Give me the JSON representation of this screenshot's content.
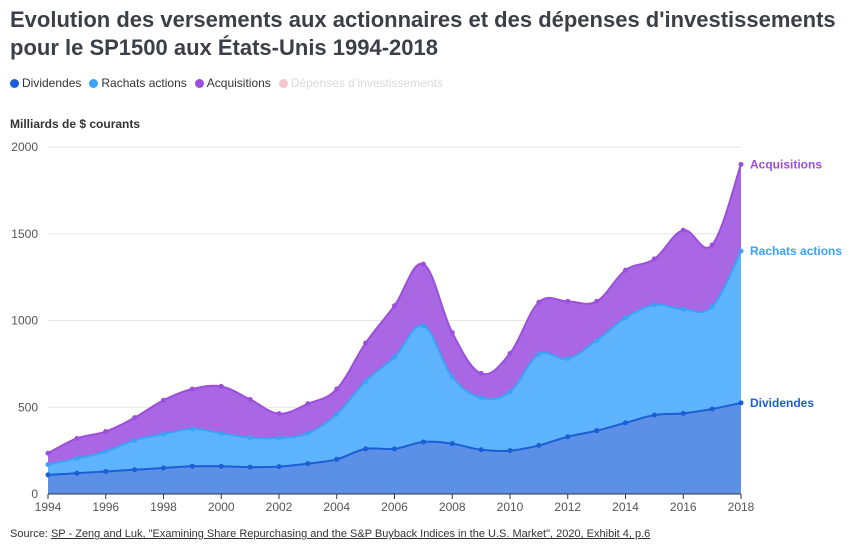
{
  "title": "Evolution des versements aux actionnaires et des dépenses d'investissements pour le SP1500 aux États-Unis 1994-2018",
  "legend": [
    {
      "label": "Dividendes",
      "color": "#1b5fd4",
      "muted": false
    },
    {
      "label": "Rachats actions",
      "color": "#3ba2f5",
      "muted": false
    },
    {
      "label": "Acquisitions",
      "color": "#9b4fdc",
      "muted": false
    },
    {
      "label": "Dépenses d’investissements",
      "color": "#f4c6d2",
      "muted": true
    }
  ],
  "unit_label": "Milliards de $ courants",
  "source": {
    "prefix": "Source: ",
    "link_text": "SP - Zeng and Luk, \"Examining Share Repurchasing and the S&P Buyback Indices in the U.S. Market\", 2020, Exhibit 4, p.6"
  },
  "chart_data": {
    "type": "area",
    "stacked": true,
    "x": [
      1994,
      1995,
      1996,
      1997,
      1998,
      1999,
      2000,
      2001,
      2002,
      2003,
      2004,
      2005,
      2006,
      2007,
      2008,
      2009,
      2010,
      2011,
      2012,
      2013,
      2014,
      2015,
      2016,
      2017,
      2018
    ],
    "xticks": [
      "1994",
      "1996",
      "1998",
      "2000",
      "2002",
      "2004",
      "2006",
      "2008",
      "2010",
      "2012",
      "2014",
      "2016",
      "2018"
    ],
    "yticks": [
      "0",
      "500",
      "1000",
      "1500",
      "2000"
    ],
    "ylim": [
      0,
      2000
    ],
    "grid": true,
    "series": [
      {
        "name": "Dividendes",
        "color": "#1b5fd4",
        "fill": "#5c8fe6",
        "values": [
          110,
          120,
          130,
          140,
          150,
          160,
          160,
          155,
          158,
          175,
          200,
          260,
          260,
          300,
          290,
          255,
          250,
          280,
          330,
          365,
          410,
          455,
          465,
          490,
          525
        ]
      },
      {
        "name": "Rachats actions",
        "color": "#3ba2f5",
        "fill": "#5db4fc",
        "values": [
          60,
          85,
          115,
          170,
          195,
          215,
          190,
          170,
          165,
          175,
          260,
          390,
          530,
          670,
          385,
          300,
          340,
          525,
          450,
          520,
          605,
          635,
          600,
          590,
          875
        ]
      },
      {
        "name": "Acquisitions",
        "color": "#9b4fdc",
        "fill": "#a967e3",
        "values": [
          65,
          115,
          115,
          130,
          195,
          230,
          270,
          220,
          140,
          170,
          145,
          220,
          295,
          355,
          255,
          140,
          220,
          300,
          330,
          225,
          275,
          265,
          455,
          355,
          500
        ]
      }
    ]
  }
}
